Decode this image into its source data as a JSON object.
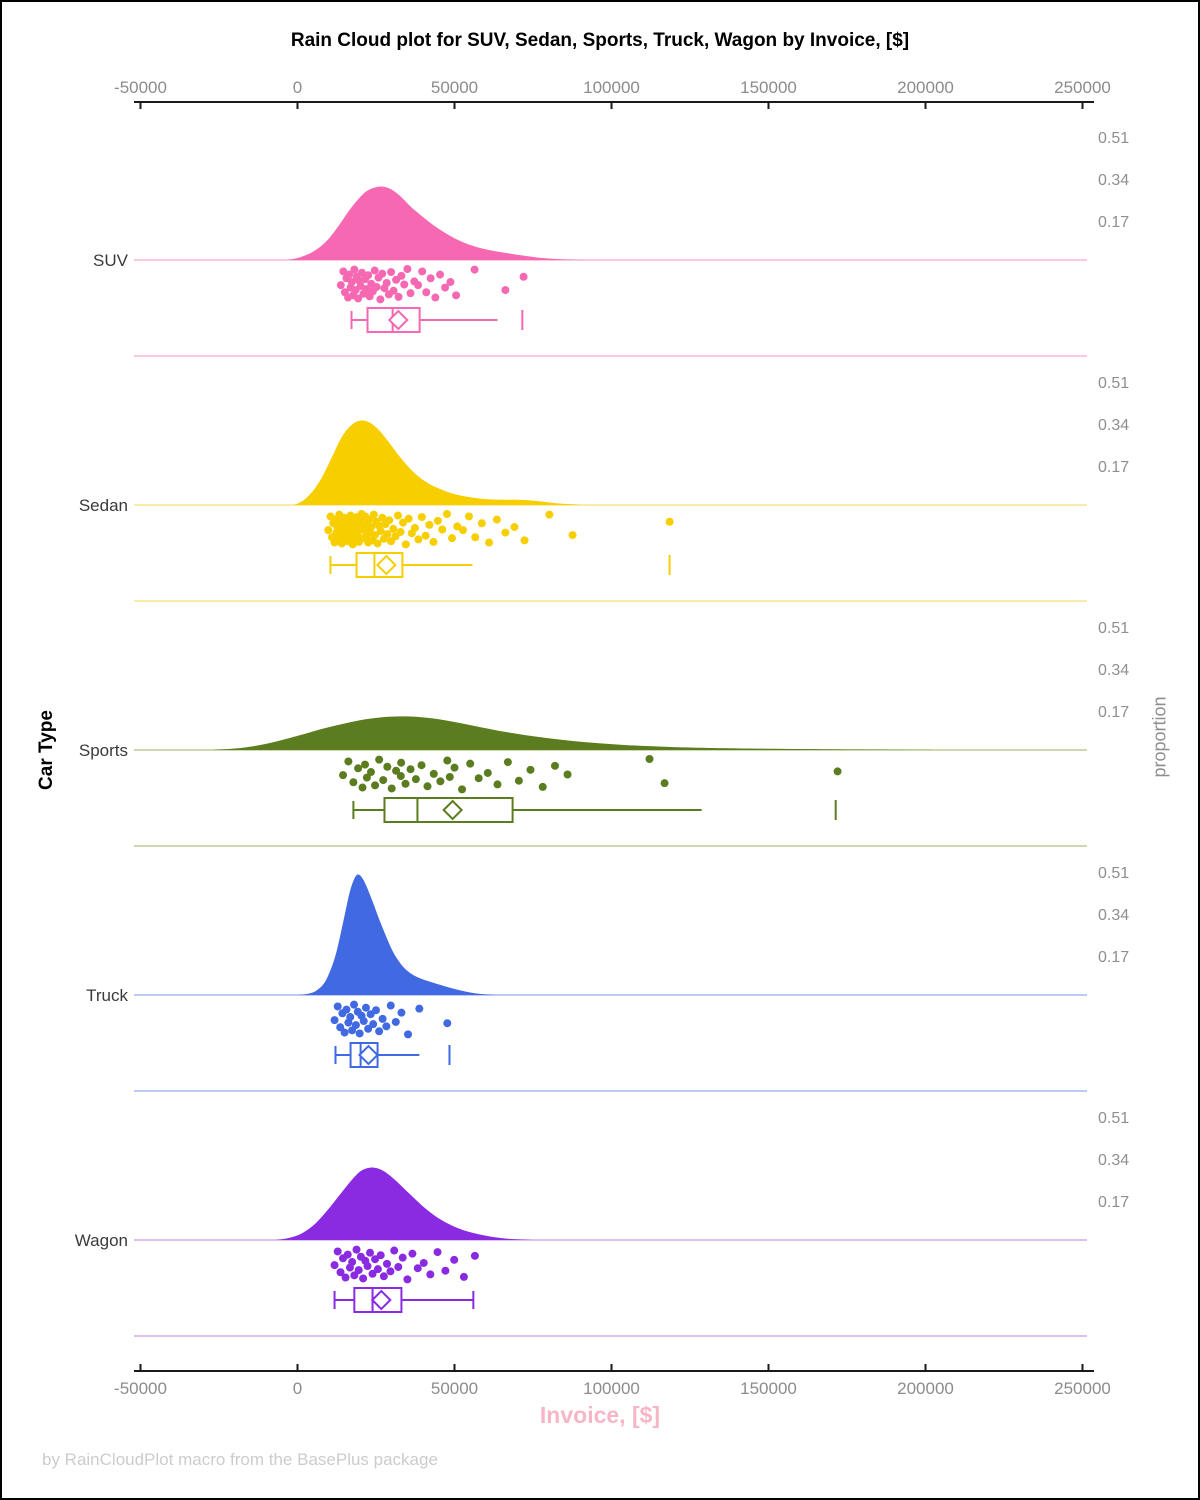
{
  "title": "Rain Cloud plot for SUV, Sedan, Sports, Truck, Wagon by Invoice, [$]",
  "footer": "by RainCloudPlot macro from the BasePlus package",
  "x_axis": {
    "label": "Invoice, [$]",
    "label_color": "#f6b6c8",
    "tick_values": [
      -50000,
      0,
      50000,
      100000,
      150000,
      200000,
      250000
    ],
    "tick_labels": [
      "-50000",
      "0",
      "50000",
      "100000",
      "150000",
      "200000",
      "250000"
    ]
  },
  "y_axis": {
    "label": "Car Type"
  },
  "right_axis": {
    "label": "proportion",
    "tick_labels_top_to_bottom": [
      "0.51",
      "0.34",
      "0.17"
    ],
    "tick_values_top_to_bottom": [
      0.51,
      0.34,
      0.17
    ]
  },
  "chart_data": {
    "type": "raincloud (half-violin density + jittered points + box plot per category)",
    "title": "Rain Cloud plot for SUV, Sedan, Sports, Truck, Wagon by Invoice, [$]",
    "xlabel": "Invoice, [$]",
    "ylabel": "Car Type",
    "right_label": "proportion",
    "xlim": [
      -50000,
      250000
    ],
    "categories": [
      "SUV",
      "Sedan",
      "Sports",
      "Truck",
      "Wagon"
    ],
    "proportion_ticks": [
      0.17,
      0.34,
      0.51
    ],
    "jitter_pattern": [
      0.52,
      0.08,
      0.75,
      0.3,
      0.92,
      0.18,
      0.6,
      0.42,
      0.85,
      0.02,
      0.68,
      0.25,
      0.95,
      0.38,
      0.55,
      0.12,
      0.8,
      0.33,
      0.65,
      0.2,
      0.88,
      0.48,
      0.72,
      0.05,
      0.58,
      0.28,
      0.98,
      0.15,
      0.62,
      0.45,
      0.82,
      0.1,
      0.7,
      0.35,
      0.9,
      0.22,
      0.5,
      0.0,
      0.78,
      0.4
    ],
    "series": [
      {
        "name": "SUV",
        "color": "#f668b2",
        "color_light": "#fac6e0",
        "density": [
          [
            -3000,
            0
          ],
          [
            1000,
            0.012
          ],
          [
            5000,
            0.035
          ],
          [
            9000,
            0.075
          ],
          [
            13000,
            0.14
          ],
          [
            17000,
            0.215
          ],
          [
            21000,
            0.275
          ],
          [
            24000,
            0.298
          ],
          [
            27000,
            0.305
          ],
          [
            30000,
            0.292
          ],
          [
            33000,
            0.262
          ],
          [
            36000,
            0.222
          ],
          [
            40000,
            0.178
          ],
          [
            44000,
            0.138
          ],
          [
            48000,
            0.105
          ],
          [
            52000,
            0.078
          ],
          [
            56000,
            0.058
          ],
          [
            60000,
            0.044
          ],
          [
            64000,
            0.034
          ],
          [
            68000,
            0.026
          ],
          [
            72000,
            0.018
          ],
          [
            76000,
            0.011
          ],
          [
            80000,
            0.006
          ],
          [
            85000,
            0.002
          ],
          [
            90000,
            0
          ]
        ],
        "box": {
          "low": 17200,
          "q1": 22300,
          "median": 30300,
          "q3": 38900,
          "high": 63700,
          "mean": 32100
        },
        "far_values": [
          71600
        ],
        "right_whisker_cap": false,
        "points": [
          13800,
          14600,
          15100,
          15600,
          16100,
          16500,
          16900,
          17300,
          17700,
          18100,
          18500,
          18900,
          19300,
          19700,
          20100,
          20500,
          21000,
          21500,
          22000,
          22500,
          23000,
          23500,
          24000,
          24600,
          25200,
          25800,
          26400,
          27000,
          27700,
          28400,
          29100,
          29800,
          30600,
          31400,
          32200,
          33100,
          34000,
          35000,
          36000,
          37200,
          38400,
          39700,
          41000,
          42400,
          43900,
          45400,
          47000,
          48700,
          50500,
          56400,
          66200,
          72000
        ]
      },
      {
        "name": "Sedan",
        "color": "#f7ce00",
        "color_light": "#faeba6",
        "density": [
          [
            -1000,
            0
          ],
          [
            2000,
            0.02
          ],
          [
            5000,
            0.06
          ],
          [
            8000,
            0.12
          ],
          [
            11000,
            0.2
          ],
          [
            14000,
            0.28
          ],
          [
            17000,
            0.33
          ],
          [
            20000,
            0.35
          ],
          [
            23000,
            0.342
          ],
          [
            26000,
            0.31
          ],
          [
            29000,
            0.262
          ],
          [
            32000,
            0.21
          ],
          [
            35000,
            0.163
          ],
          [
            38000,
            0.124
          ],
          [
            41000,
            0.095
          ],
          [
            44000,
            0.074
          ],
          [
            47000,
            0.058
          ],
          [
            50000,
            0.045
          ],
          [
            54000,
            0.034
          ],
          [
            58000,
            0.027
          ],
          [
            62000,
            0.023
          ],
          [
            66000,
            0.022
          ],
          [
            70000,
            0.022
          ],
          [
            74000,
            0.019
          ],
          [
            78000,
            0.014
          ],
          [
            82000,
            0.008
          ],
          [
            86000,
            0.004
          ],
          [
            90000,
            0
          ]
        ],
        "box": {
          "low": 10500,
          "q1": 18800,
          "median": 24500,
          "q3": 33400,
          "high": 55700,
          "mean": 28300
        },
        "far_values": [
          118500
        ],
        "right_whisker_cap": false,
        "points": [
          9800,
          10500,
          11000,
          11400,
          11800,
          12100,
          12400,
          12700,
          13000,
          13300,
          13600,
          13900,
          14100,
          14400,
          14600,
          14900,
          15100,
          15400,
          15600,
          15900,
          16100,
          16400,
          16600,
          16900,
          17100,
          17400,
          17600,
          17900,
          18100,
          18400,
          18600,
          18900,
          19100,
          19400,
          19600,
          19900,
          20100,
          20400,
          20700,
          21000,
          21300,
          21600,
          21900,
          22200,
          22500,
          22800,
          23100,
          23500,
          23900,
          24300,
          24700,
          25100,
          25500,
          26000,
          26500,
          27000,
          27500,
          28000,
          28600,
          29200,
          29800,
          30500,
          31200,
          32000,
          32800,
          33600,
          34500,
          35400,
          36400,
          37400,
          38500,
          39600,
          40800,
          42000,
          43300,
          44700,
          46100,
          47600,
          49200,
          50900,
          52700,
          54600,
          56600,
          58700,
          61000,
          63500,
          66200,
          69100,
          72300,
          80200,
          87600,
          118500
        ]
      },
      {
        "name": "Sports",
        "color": "#5b7d1f",
        "color_light": "#cdd8ac",
        "density": [
          [
            -27000,
            0
          ],
          [
            -20000,
            0.006
          ],
          [
            -13000,
            0.018
          ],
          [
            -6000,
            0.038
          ],
          [
            1000,
            0.062
          ],
          [
            8000,
            0.088
          ],
          [
            15000,
            0.11
          ],
          [
            22000,
            0.128
          ],
          [
            29000,
            0.138
          ],
          [
            36000,
            0.139
          ],
          [
            43000,
            0.131
          ],
          [
            50000,
            0.116
          ],
          [
            57000,
            0.098
          ],
          [
            64000,
            0.08
          ],
          [
            72000,
            0.063
          ],
          [
            80000,
            0.049
          ],
          [
            88000,
            0.037
          ],
          [
            96000,
            0.028
          ],
          [
            104000,
            0.021
          ],
          [
            112000,
            0.016
          ],
          [
            120000,
            0.012
          ],
          [
            130000,
            0.009
          ],
          [
            140000,
            0.007
          ],
          [
            152000,
            0.005
          ],
          [
            164000,
            0.0035
          ],
          [
            176000,
            0.002
          ],
          [
            190000,
            0.001
          ],
          [
            205000,
            0
          ]
        ],
        "box": {
          "low": 17800,
          "q1": 27700,
          "median": 38200,
          "q3": 68500,
          "high": 128700,
          "mean": 49400
        },
        "far_values": [
          171400
        ],
        "right_whisker_cap": false,
        "points": [
          14500,
          16200,
          17800,
          19300,
          20700,
          21500,
          22100,
          23400,
          24700,
          26000,
          27300,
          28600,
          30000,
          31400,
          32900,
          33000,
          34400,
          36000,
          37700,
          39500,
          41400,
          43400,
          45500,
          47700,
          48500,
          50000,
          52400,
          55000,
          57700,
          60600,
          63700,
          67000,
          70500,
          74200,
          78100,
          82000,
          86000,
          112100,
          116900,
          172000
        ]
      },
      {
        "name": "Truck",
        "color": "#4169e1",
        "color_light": "#bcc9f2",
        "density": [
          [
            500,
            0
          ],
          [
            3000,
            0.004
          ],
          [
            6000,
            0.018
          ],
          [
            9000,
            0.06
          ],
          [
            12000,
            0.16
          ],
          [
            14500,
            0.3
          ],
          [
            16500,
            0.42
          ],
          [
            18000,
            0.48
          ],
          [
            19200,
            0.5
          ],
          [
            20500,
            0.488
          ],
          [
            22000,
            0.45
          ],
          [
            24000,
            0.385
          ],
          [
            26000,
            0.315
          ],
          [
            28000,
            0.25
          ],
          [
            30000,
            0.19
          ],
          [
            32000,
            0.145
          ],
          [
            34000,
            0.112
          ],
          [
            36000,
            0.09
          ],
          [
            38000,
            0.075
          ],
          [
            40500,
            0.062
          ],
          [
            43000,
            0.052
          ],
          [
            45500,
            0.042
          ],
          [
            48000,
            0.032
          ],
          [
            51000,
            0.022
          ],
          [
            54000,
            0.013
          ],
          [
            57000,
            0.006
          ],
          [
            60000,
            0.002
          ],
          [
            63000,
            0
          ]
        ],
        "box": {
          "low": 12100,
          "q1": 16900,
          "median": 20100,
          "q3": 25500,
          "high": 38800,
          "mean": 22600
        },
        "far_values": [
          48400
        ],
        "right_whisker_cap": false,
        "points": [
          11800,
          12800,
          13600,
          14300,
          15000,
          15600,
          16200,
          16800,
          17400,
          18000,
          18600,
          19200,
          19800,
          20400,
          21100,
          21800,
          22500,
          23300,
          24100,
          25000,
          26000,
          27100,
          28300,
          29700,
          31300,
          33100,
          35200,
          38800,
          47700
        ]
      },
      {
        "name": "Wagon",
        "color": "#8a2be2",
        "color_light": "#dcc0f5",
        "density": [
          [
            -7000,
            0
          ],
          [
            -3000,
            0.008
          ],
          [
            1000,
            0.025
          ],
          [
            5000,
            0.06
          ],
          [
            9000,
            0.115
          ],
          [
            13000,
            0.18
          ],
          [
            17000,
            0.245
          ],
          [
            20000,
            0.285
          ],
          [
            23000,
            0.3
          ],
          [
            26000,
            0.295
          ],
          [
            29000,
            0.272
          ],
          [
            32000,
            0.238
          ],
          [
            35000,
            0.2
          ],
          [
            38000,
            0.163
          ],
          [
            41000,
            0.128
          ],
          [
            44000,
            0.098
          ],
          [
            47000,
            0.074
          ],
          [
            50000,
            0.055
          ],
          [
            53000,
            0.04
          ],
          [
            56000,
            0.029
          ],
          [
            59000,
            0.02
          ],
          [
            62000,
            0.013
          ],
          [
            65000,
            0.008
          ],
          [
            68000,
            0.004
          ],
          [
            71000,
            0.002
          ],
          [
            75000,
            0
          ]
        ],
        "box": {
          "low": 11800,
          "q1": 18100,
          "median": 23900,
          "q3": 33100,
          "high": 56000,
          "mean": 26700
        },
        "far_values": [],
        "right_whisker_cap": true,
        "points": [
          11800,
          12800,
          13700,
          14500,
          15300,
          16000,
          16700,
          17400,
          18100,
          18800,
          19500,
          20200,
          20900,
          21600,
          22300,
          23100,
          23900,
          24700,
          25600,
          26500,
          27500,
          28500,
          29600,
          30800,
          32100,
          33500,
          35000,
          36600,
          38300,
          40200,
          42300,
          44600,
          47100,
          49900,
          53000,
          56500
        ]
      }
    ]
  },
  "style": {
    "axis_line_color": "#1a1a1a",
    "tick_label_color": "#8c8c8c",
    "category_label_color": "#3a3a3a",
    "proportion_label_color": "#8f8f8f"
  }
}
